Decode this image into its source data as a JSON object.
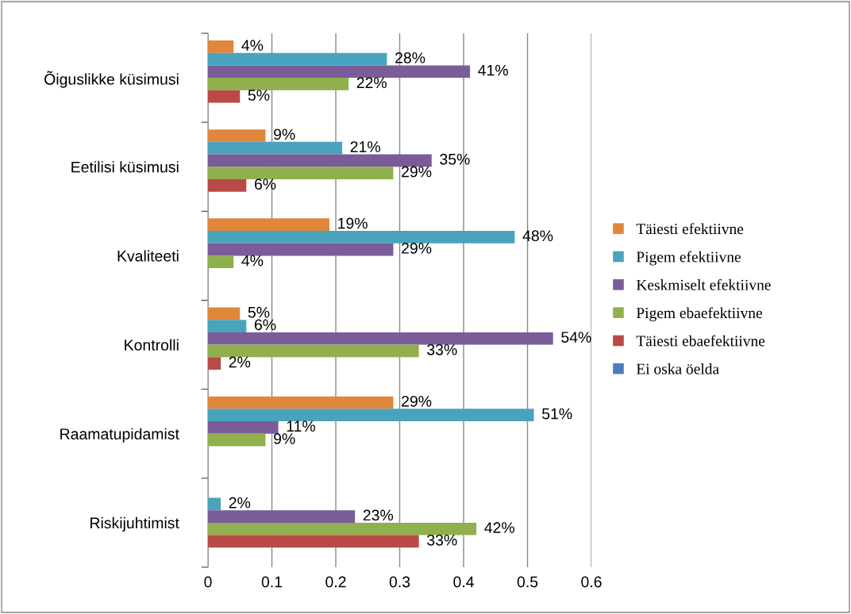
{
  "chart_data": {
    "type": "bar",
    "orientation": "horizontal",
    "categories": [
      "Õiguslikke küsimusi",
      "Eetilisi küsimusi",
      "Kvaliteeti",
      "Kontrolli",
      "Raamatupidamist",
      "Riskijuhtimist"
    ],
    "xlim": [
      0,
      0.6
    ],
    "xticks": [
      0,
      0.1,
      0.2,
      0.3,
      0.4,
      0.5,
      0.6
    ],
    "grid": "x",
    "legend": "right",
    "series": [
      {
        "name": "Täiesti efektiivne",
        "color": "#e0873c",
        "values": [
          0.04,
          0.09,
          0.19,
          0.05,
          0.29,
          null
        ],
        "value_labels": [
          "4%",
          "9%",
          "19%",
          "5%",
          "29%",
          null
        ]
      },
      {
        "name": "Pigem efektiivne",
        "color": "#4aa3bd",
        "values": [
          0.28,
          0.21,
          0.48,
          0.06,
          0.51,
          0.02
        ],
        "value_labels": [
          "28%",
          "21%",
          "48%",
          "6%",
          "51%",
          "2%"
        ]
      },
      {
        "name": "Keskmiselt efektiivne",
        "color": "#7a5c99",
        "values": [
          0.41,
          0.35,
          0.29,
          0.54,
          0.11,
          0.23
        ],
        "value_labels": [
          "41%",
          "35%",
          "29%",
          "54%",
          "11%",
          "23%"
        ]
      },
      {
        "name": "Pigem ebaefektiivne",
        "color": "#8fb04c",
        "values": [
          0.22,
          0.29,
          0.04,
          0.33,
          0.09,
          0.42
        ],
        "value_labels": [
          "22%",
          "29%",
          "4%",
          "33%",
          "9%",
          "42%"
        ]
      },
      {
        "name": "Täiesti ebaefektiivne",
        "color": "#b94a47",
        "values": [
          0.05,
          0.06,
          null,
          0.02,
          null,
          0.33
        ],
        "value_labels": [
          "5%",
          "6%",
          null,
          "2%",
          null,
          "33%"
        ]
      },
      {
        "name": "Ei oska öelda",
        "color": "#4a7dbd",
        "values": [
          null,
          null,
          null,
          null,
          null,
          null
        ],
        "value_labels": [
          null,
          null,
          null,
          null,
          null,
          null
        ]
      }
    ]
  }
}
